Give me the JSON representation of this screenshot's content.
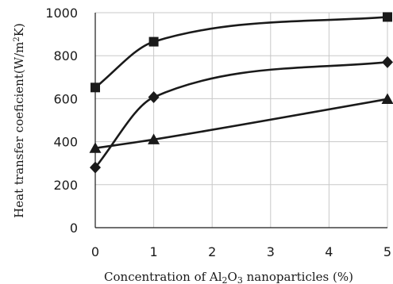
{
  "chart_data": {
    "type": "line",
    "x": [
      0,
      1,
      5
    ],
    "xlim": [
      0,
      5
    ],
    "ylim": [
      0,
      1000
    ],
    "xticks": [
      "0",
      "1",
      "2",
      "3",
      "4",
      "5"
    ],
    "yticks": [
      "0",
      "200",
      "400",
      "600",
      "800",
      "1000"
    ],
    "xlabel_parts": {
      "pre": "Concentration of Al",
      "sub1": "2",
      "mid": "O",
      "sub2": "3",
      "post": " nanoparticles (%)"
    },
    "ylabel_parts": {
      "pre": "Heat transfer coeficient(W/m",
      "sup": "2",
      "post": "K)"
    },
    "grid": true,
    "series": [
      {
        "marker": "square",
        "color": "#1a1a1a",
        "values": [
          652,
          865,
          980
        ]
      },
      {
        "marker": "diamond",
        "color": "#1a1a1a",
        "values": [
          280,
          607,
          770
        ]
      },
      {
        "marker": "triangle",
        "color": "#1a1a1a",
        "values": [
          370,
          410,
          598
        ]
      }
    ]
  }
}
